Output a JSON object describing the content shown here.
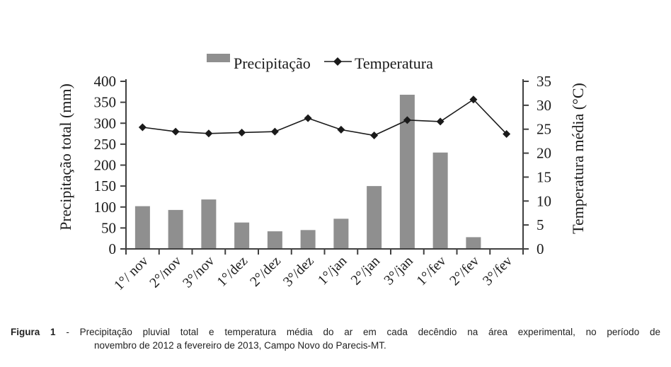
{
  "chart_data": {
    "type": "bar",
    "combo": "bar + line, dual y-axes",
    "title": "",
    "categories": [
      "1°/ nov",
      "2°/nov",
      "3°/nov",
      "1°/dez",
      "2°/dez",
      "3°/dez",
      "1°/jan",
      "2°/jan",
      "3°/jan",
      "1°/fev",
      "2°/fev",
      "3°/fev"
    ],
    "series": [
      {
        "name": "Precipitação",
        "type": "bar",
        "axis": "left",
        "color": "#8f8f8f",
        "values": [
          102,
          93,
          118,
          63,
          42,
          45,
          72,
          150,
          368,
          230,
          28,
          0
        ]
      },
      {
        "name": "Temperatura",
        "type": "line",
        "axis": "right",
        "marker": "diamond",
        "color": "#1a1a1a",
        "values": [
          25.4,
          24.5,
          24.1,
          24.3,
          24.5,
          27.3,
          24.9,
          23.7,
          26.9,
          26.6,
          31.2,
          24.0
        ]
      }
    ],
    "left_axis": {
      "label": "Precipitação total (mm)",
      "min": 0,
      "max": 400,
      "tick_step": 50
    },
    "right_axis": {
      "label": "Temperatura média (°C)",
      "min": 0,
      "max": 35,
      "tick_step": 5
    },
    "legend_position": "top-center",
    "grid": false,
    "colors": {
      "axis": "#404040",
      "text": "#1a1a1a"
    }
  },
  "caption": {
    "label": "Figura 1",
    "line1": " - Precipitação pluvial total e temperatura média do ar em cada decêndio na área experimental, no período de",
    "line2": "novembro de 2012 a fevereiro de 2013, Campo Novo do Parecis-MT."
  }
}
